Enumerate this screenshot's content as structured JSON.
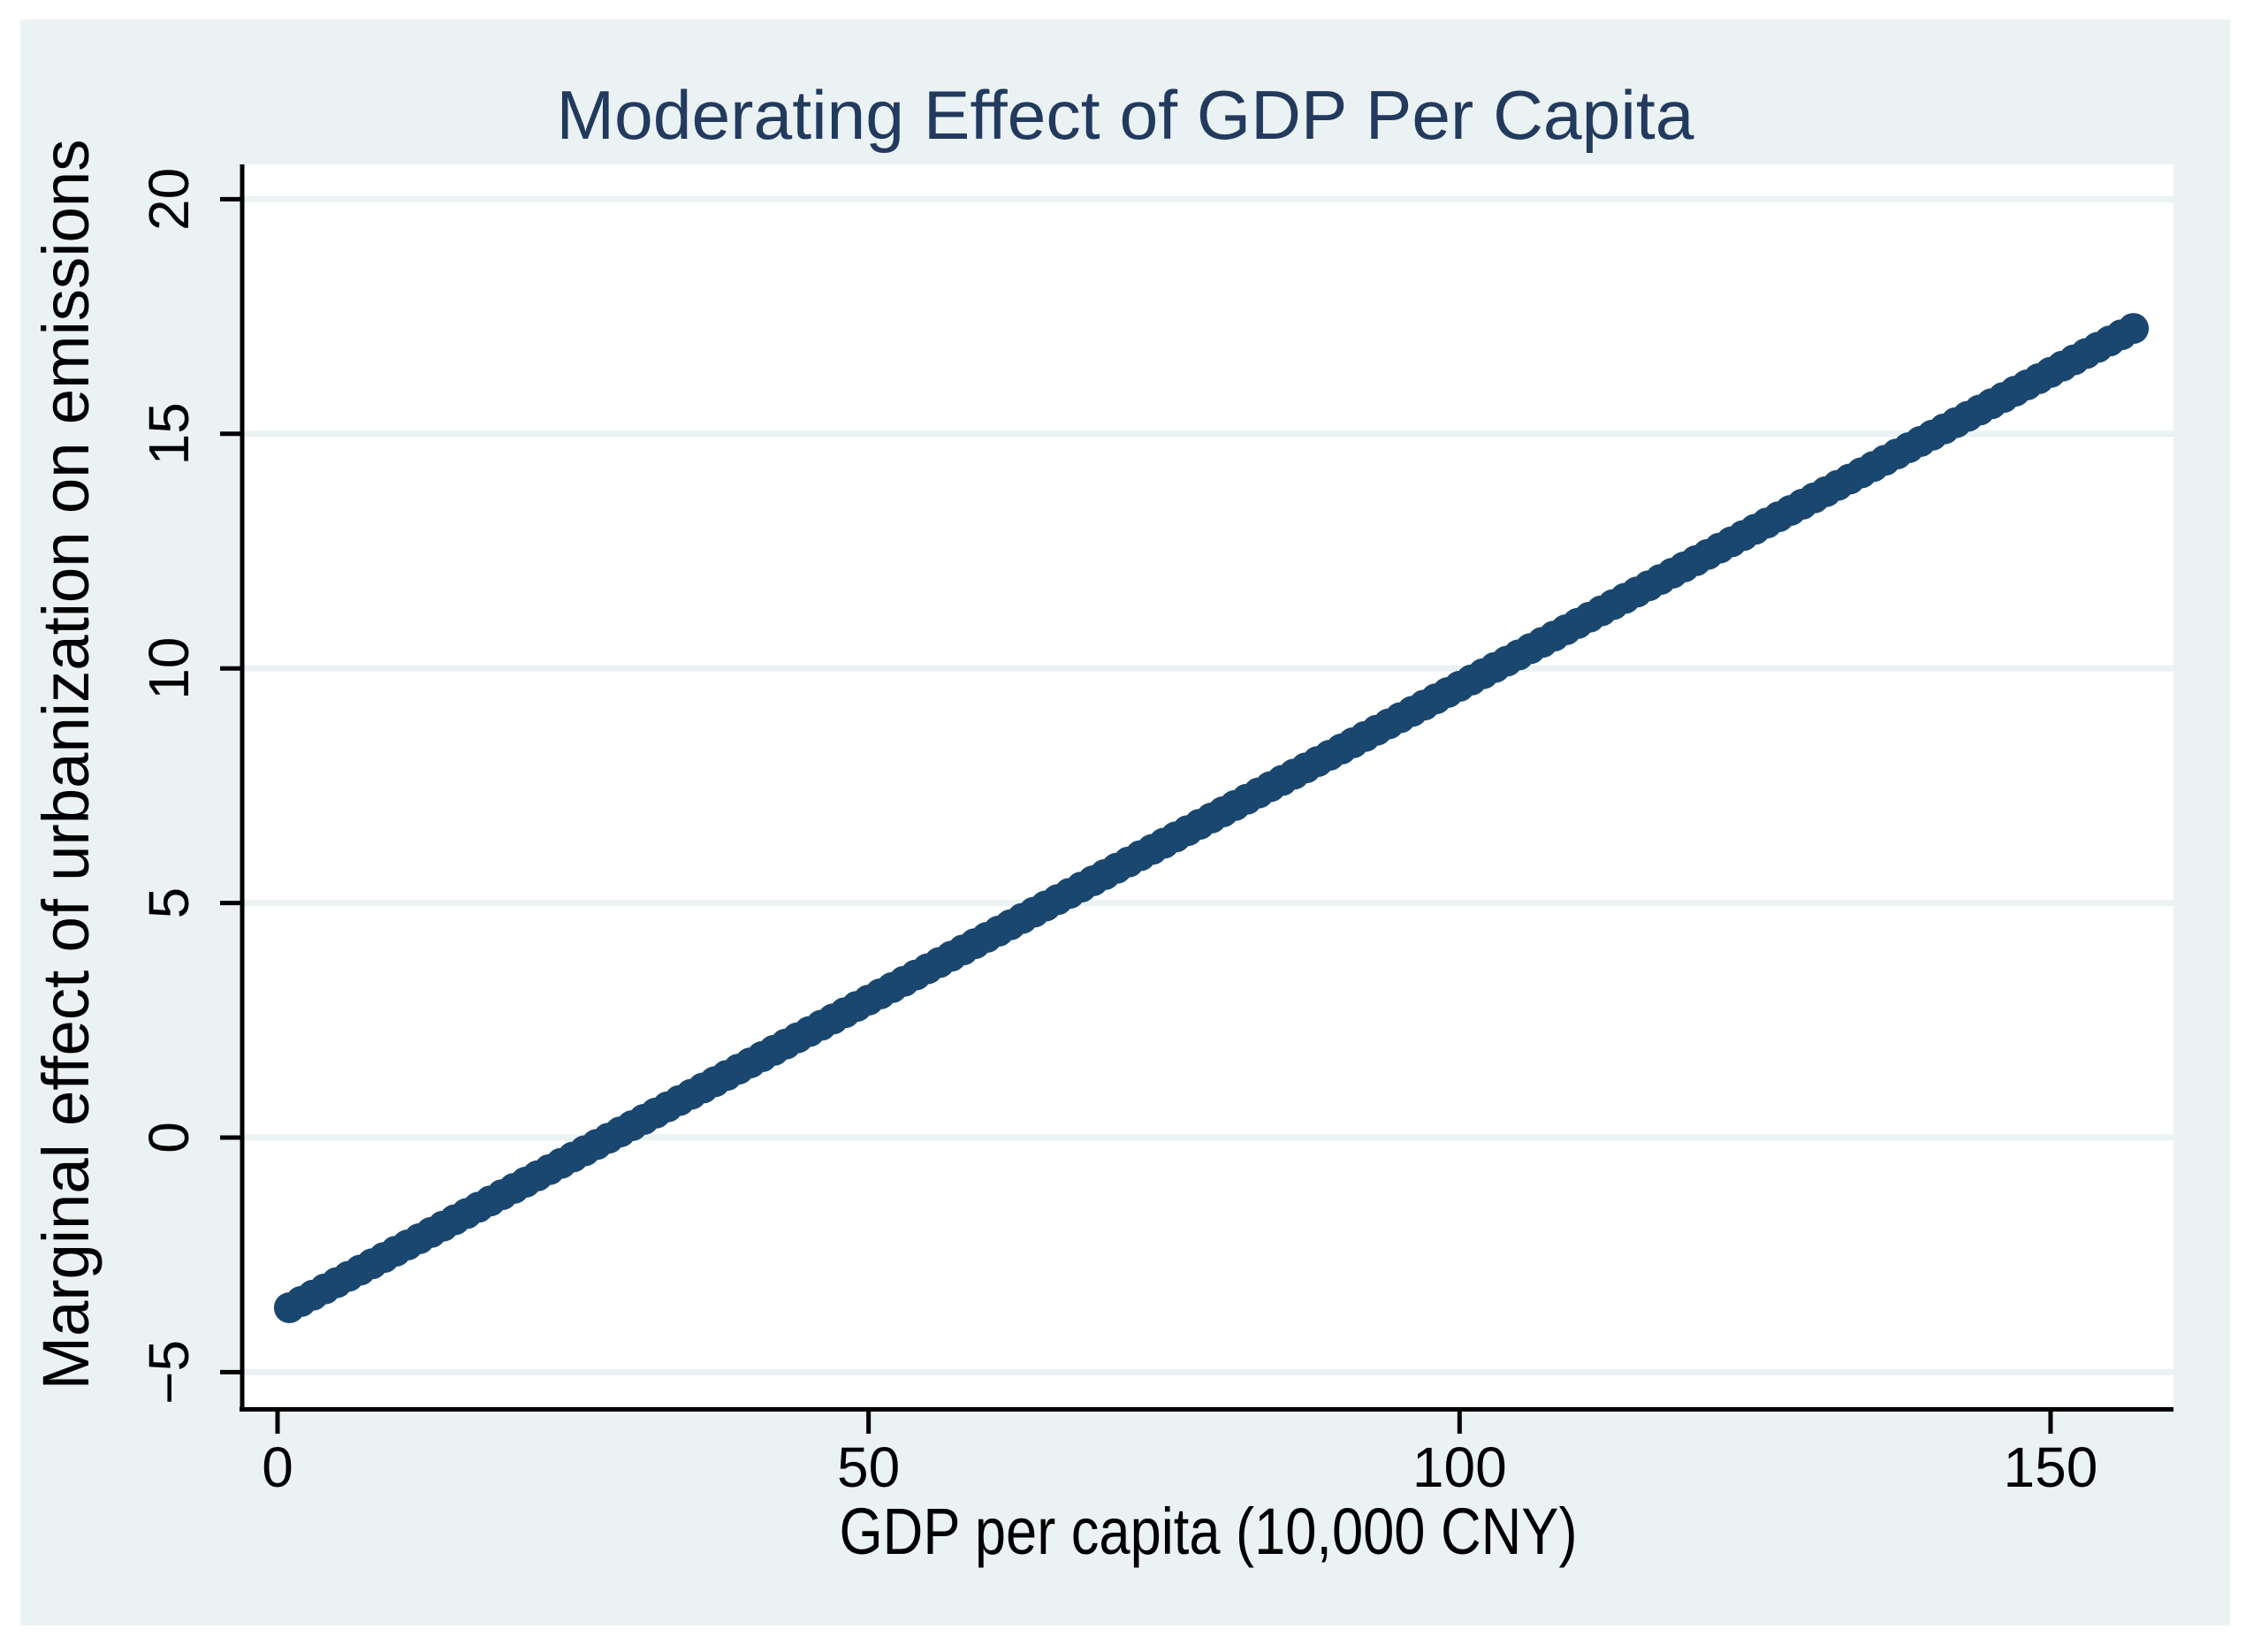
{
  "figure": {
    "title": "Moderating Effect of GDP Per Capita"
  },
  "chart_data": {
    "type": "scatter",
    "title": "Moderating Effect of GDP Per Capita",
    "xlabel": "GDP per capita (10,000 CNY)",
    "ylabel": "Marginal effect of urbanization on emissions",
    "x_ticks": {
      "values": [
        0,
        50,
        100,
        150
      ],
      "labels": [
        "0",
        "50",
        "100",
        "150"
      ]
    },
    "y_ticks": {
      "values": [
        -5,
        0,
        5,
        10,
        15,
        20
      ],
      "labels": [
        "−5",
        "0",
        "5",
        "10",
        "15",
        "20"
      ]
    },
    "xlim": [
      -2.7,
      160.5
    ],
    "ylim": [
      -5.7,
      20.8
    ],
    "grid": "horizontal",
    "legend": "none",
    "series": [
      {
        "name": "Marginal effect of urbanization on emissions",
        "marker": "filled-circle",
        "relationship": "linear",
        "x_start": 1,
        "x_end": 157,
        "x_step": 1,
        "intercept": -3.76,
        "slope": 0.1338,
        "endpoints": [
          [
            1,
            -3.63
          ],
          [
            157,
            17.25
          ]
        ],
        "zero_crossing_x": 28.1
      }
    ],
    "colors": {
      "marker": "#1a476f",
      "title_text": "#223a5e",
      "figure_background": "#eaf2f3",
      "plot_background": "#ffffff",
      "gridline": "#eaf2f3",
      "axis": "#000000",
      "tick_text": "#000000",
      "page_background": "#ffffff"
    }
  }
}
